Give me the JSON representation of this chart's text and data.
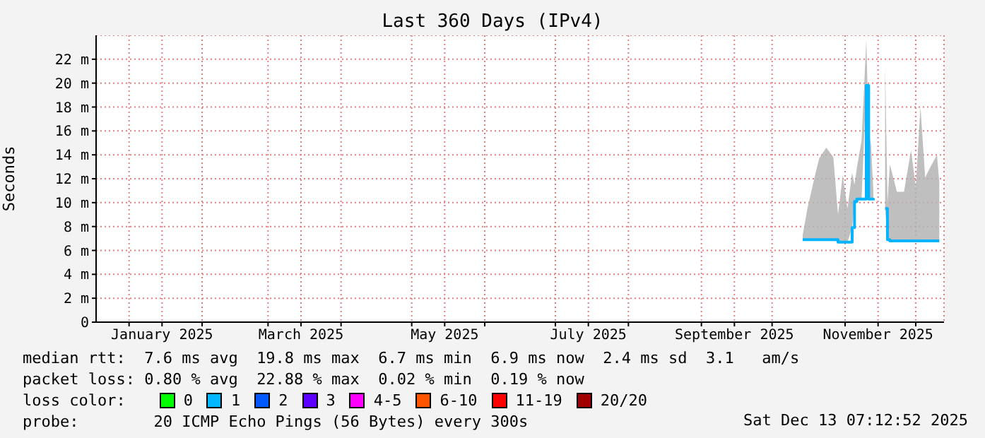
{
  "chart_data": {
    "type": "line",
    "title": "Last 360 Days (IPv4)",
    "ylabel": "Seconds",
    "x": [
      "2025-10-14",
      "2025-10-16",
      "2025-10-19",
      "2025-10-21",
      "2025-10-24",
      "2025-10-27",
      "2025-10-29",
      "2025-10-31",
      "2025-11-02",
      "2025-11-04",
      "2025-11-05",
      "2025-11-06",
      "2025-11-08",
      "2025-11-10",
      "2025-11-11",
      "2025-11-12",
      "2025-11-13",
      "2025-11-14",
      "2025-11-17",
      "2025-11-18",
      "2025-11-19",
      "2025-11-20",
      "2025-11-23",
      "2025-11-26",
      "2025-11-29",
      "2025-12-01",
      "2025-12-03",
      "2025-12-05",
      "2025-12-07",
      "2025-12-10",
      "2025-12-11"
    ],
    "series": [
      {
        "color": "#00b4ff",
        "values": [
          6.9,
          6.9,
          6.9,
          6.9,
          6.9,
          6.9,
          6.7,
          6.7,
          6.7,
          7.9,
          10.1,
          10.3,
          10.3,
          19.8,
          10.3,
          10.3,
          10.2,
          null,
          null,
          9.5,
          6.9,
          6.8,
          6.8,
          6.8,
          6.8,
          6.8,
          6.8,
          6.8,
          6.8,
          6.8,
          6.8
        ],
        "lower": [
          6.9,
          6.9,
          6.9,
          6.9,
          6.9,
          6.9,
          6.7,
          6.7,
          6.7,
          7.9,
          10.1,
          10.3,
          10.3,
          19.8,
          10.3,
          10.3,
          10.2,
          null,
          null,
          9.5,
          6.9,
          6.8,
          6.8,
          6.8,
          6.8,
          6.8,
          6.8,
          6.8,
          6.8,
          6.8,
          6.8
        ],
        "upper": [
          7.3,
          9.5,
          12.1,
          13.7,
          14.6,
          13.8,
          9.0,
          12.3,
          9.5,
          12.5,
          11.5,
          12.9,
          15.2,
          23.6,
          16.0,
          14.8,
          11.0,
          null,
          null,
          21.4,
          10.0,
          13.2,
          10.9,
          10.9,
          14.4,
          11.3,
          18.0,
          12.1,
          12.9,
          14.0,
          11.7
        ]
      }
    ],
    "xlim": [
      "2024-12-18",
      "2025-12-13"
    ],
    "xticks": [
      {
        "value": "2025-01-01",
        "label": null
      },
      {
        "value": "2025-01-15",
        "label": "January 2025"
      },
      {
        "value": "2025-02-01",
        "label": null
      },
      {
        "value": "2025-03-01",
        "label": null
      },
      {
        "value": "2025-03-15",
        "label": "March 2025"
      },
      {
        "value": "2025-04-01",
        "label": null
      },
      {
        "value": "2025-05-01",
        "label": null
      },
      {
        "value": "2025-05-15",
        "label": "May 2025"
      },
      {
        "value": "2025-06-01",
        "label": null
      },
      {
        "value": "2025-07-01",
        "label": null
      },
      {
        "value": "2025-07-15",
        "label": "July 2025"
      },
      {
        "value": "2025-08-01",
        "label": null
      },
      {
        "value": "2025-09-01",
        "label": null
      },
      {
        "value": "2025-09-15",
        "label": "September 2025"
      },
      {
        "value": "2025-10-01",
        "label": null
      },
      {
        "value": "2025-11-01",
        "label": null
      },
      {
        "value": "2025-11-15",
        "label": "November 2025"
      },
      {
        "value": "2025-12-01",
        "label": null
      }
    ],
    "ylim": [
      0,
      24
    ],
    "yticks": [
      0,
      {
        "value": 2,
        "label": "2 m"
      },
      {
        "value": 4,
        "label": "4 m"
      },
      {
        "value": 6,
        "label": "6 m"
      },
      {
        "value": 8,
        "label": "8 m"
      },
      {
        "value": 10,
        "label": "10 m"
      },
      {
        "value": 12,
        "label": "12 m"
      },
      {
        "value": 14,
        "label": "14 m"
      },
      {
        "value": 16,
        "label": "16 m"
      },
      {
        "value": 18,
        "label": "18 m"
      },
      {
        "value": 20,
        "label": "20 m"
      },
      {
        "value": 22,
        "label": "22 m"
      }
    ],
    "grid": true,
    "annotations": [
      "median rtt:  7.6 ms avg  19.8 ms max  6.7 ms min  6.9 ms now  2.4 ms sd  3.1   am/s",
      "packet loss: 0.80 % avg  22.88 % max  0.02 % min  0.19 % now",
      "loss color:",
      "0",
      "1",
      "2",
      "3",
      "4-5",
      "6-10",
      "11-19",
      "20/20",
      "probe:        20 ICMP Echo Pings (56 Bytes) every 300s",
      "Sat Dec 13 07:12:52 2025"
    ]
  }
}
